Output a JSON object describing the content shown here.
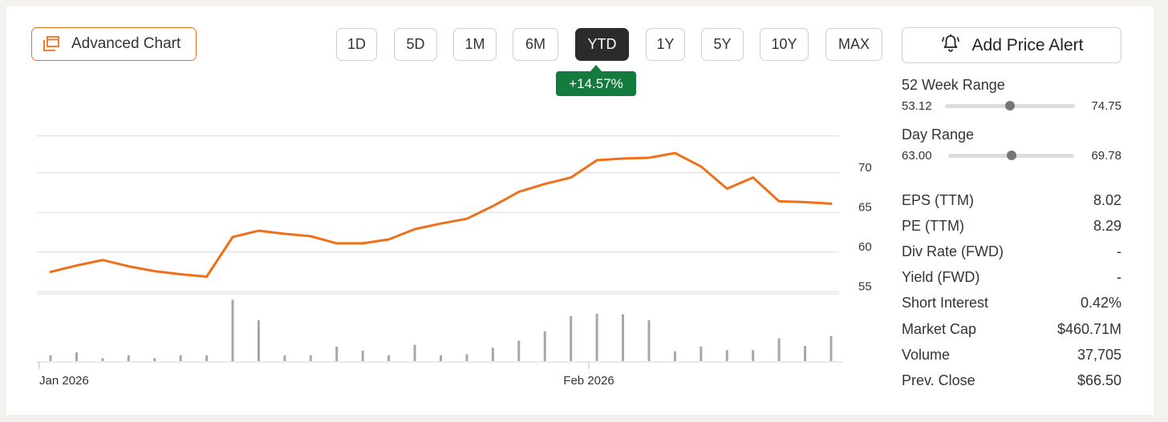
{
  "toolbar": {
    "advanced_chart_label": "Advanced Chart",
    "periods": [
      "1D",
      "5D",
      "1M",
      "6M",
      "YTD",
      "1Y",
      "5Y",
      "10Y",
      "MAX"
    ],
    "active_period": "YTD",
    "change_badge": "+14.57%",
    "add_alert_label": "Add Price Alert",
    "accent_color": "#f0701a",
    "badge_color": "#157a3e"
  },
  "stats": {
    "week52": {
      "label": "52 Week Range",
      "low": "53.12",
      "high": "74.75",
      "position": 0.5
    },
    "day": {
      "label": "Day Range",
      "low": "63.00",
      "high": "69.78",
      "position": 0.5
    },
    "rows": [
      {
        "label": "EPS (TTM)",
        "value": "8.02"
      },
      {
        "label": "PE (TTM)",
        "value": "8.29"
      },
      {
        "label": "Div Rate (FWD)",
        "value": "-"
      },
      {
        "label": "Yield (FWD)",
        "value": "-"
      },
      {
        "label": "Short Interest",
        "value": "0.42%"
      },
      {
        "label": "Market Cap",
        "value": "$460.71M"
      },
      {
        "label": "Volume",
        "value": "37,705"
      },
      {
        "label": "Prev. Close",
        "value": "$66.50"
      }
    ]
  },
  "chart_data": {
    "type": "line",
    "x_ticks": [
      "Jan 2026",
      "Feb 2026"
    ],
    "y_ticks": [
      55,
      60,
      65,
      70
    ],
    "ylim": [
      50,
      74.8
    ],
    "series": [
      {
        "values": [
          57.5,
          58.3,
          59.0,
          58.2,
          57.6,
          57.2,
          56.9,
          61.9,
          62.7,
          62.3,
          62.0,
          61.1,
          61.1,
          61.6,
          62.9,
          63.6,
          64.2,
          65.8,
          67.6,
          68.6,
          69.4,
          71.6,
          71.8,
          71.9,
          72.5,
          70.8,
          68.0,
          69.4,
          66.4,
          66.3,
          66.1
        ],
        "color": "#f0701a"
      }
    ],
    "volume": [
      1,
      1.5,
      0.5,
      1,
      0.5,
      1,
      1,
      10.5,
      7,
      1,
      1,
      2.5,
      1.8,
      1,
      2.8,
      1,
      1.2,
      2.3,
      3.5,
      5.1,
      7.7,
      8.1,
      8,
      7,
      1.7,
      2.5,
      1.9,
      1.9,
      3.9,
      2.6,
      4.3
    ],
    "grid": true,
    "legend": "none"
  }
}
